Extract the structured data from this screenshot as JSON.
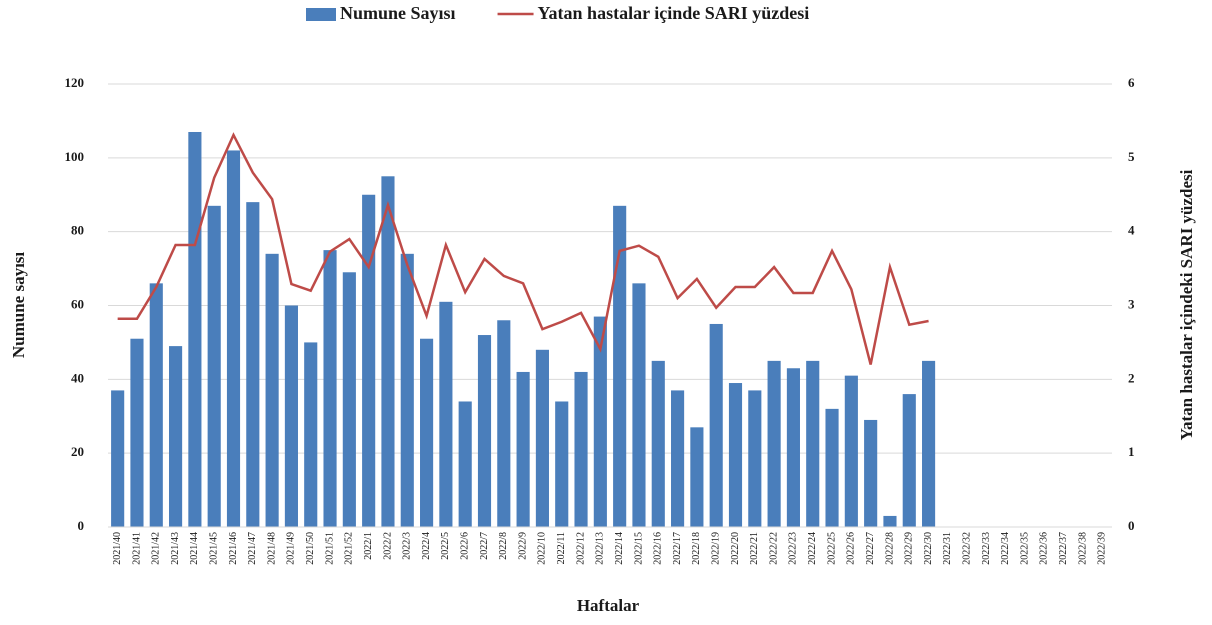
{
  "chart_data": {
    "type": "bar-line",
    "categories": [
      "2021/40",
      "2021/41",
      "2021/42",
      "2021/43",
      "2021/44",
      "2021/45",
      "2021/46",
      "2021/47",
      "2021/48",
      "2021/49",
      "2021/50",
      "2021/51",
      "2021/52",
      "2022/1",
      "2022/2",
      "2022/3",
      "2022/4",
      "2022/5",
      "2022/6",
      "2022/7",
      "2022/8",
      "2022/9",
      "2022/10",
      "2022/11",
      "2022/12",
      "2022/13",
      "2022/14",
      "2022/15",
      "2022/16",
      "2022/17",
      "2022/18",
      "2022/19",
      "2022/20",
      "2022/21",
      "2022/22",
      "2022/23",
      "2022/24",
      "2022/25",
      "2022/26",
      "2022/27",
      "2022/28",
      "2022/29",
      "2022/30",
      "2022/31",
      "2022/32",
      "2022/33",
      "2022/34",
      "2022/35",
      "2022/36",
      "2022/37",
      "2022/38",
      "2022/39"
    ],
    "series": [
      {
        "name": "Numune Sayısı",
        "kind": "bar",
        "color": "#4a7ebb",
        "values": [
          37,
          51,
          66,
          49,
          107,
          87,
          102,
          88,
          74,
          60,
          50,
          75,
          69,
          90,
          95,
          74,
          51,
          61,
          34,
          52,
          56,
          42,
          48,
          34,
          42,
          57,
          87,
          66,
          45,
          37,
          27,
          55,
          39,
          37,
          45,
          43,
          45,
          32,
          41,
          29,
          3,
          36,
          45,
          null,
          null,
          null,
          null,
          null,
          null,
          null,
          null,
          null
        ]
      },
      {
        "name": "Yatan hastalar içinde SARI yüzdesi",
        "kind": "line",
        "axis": "y2",
        "color": "#be4b48",
        "values": [
          2.82,
          2.82,
          3.25,
          3.82,
          3.82,
          4.73,
          5.31,
          4.8,
          4.44,
          3.29,
          3.2,
          3.73,
          3.9,
          3.52,
          4.36,
          3.55,
          2.86,
          3.82,
          3.18,
          3.63,
          3.4,
          3.3,
          2.68,
          2.78,
          2.9,
          2.41,
          3.74,
          3.81,
          3.66,
          3.1,
          3.36,
          2.97,
          3.25,
          3.25,
          3.52,
          3.17,
          3.17,
          3.74,
          3.22,
          2.2,
          3.52,
          2.74,
          2.79,
          null,
          null,
          null,
          null,
          null,
          null,
          null,
          null,
          null
        ]
      }
    ],
    "ylabel": "Numune sayısı",
    "y2label": "Yatan hastalar içindeki SARI yüzdesi",
    "xlabel": "Haftalar",
    "ylim": [
      0,
      120
    ],
    "yticks": [
      0,
      20,
      40,
      60,
      80,
      100,
      120
    ],
    "y2lim": [
      0,
      6
    ],
    "y2ticks": [
      0,
      1,
      2,
      3,
      4,
      5,
      6
    ],
    "grid": true
  }
}
